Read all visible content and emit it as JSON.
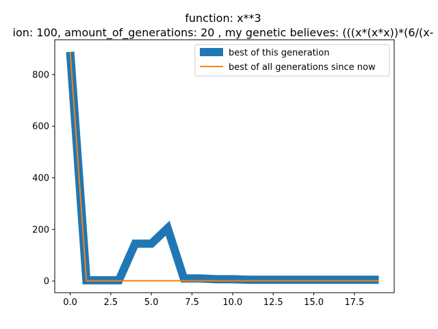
{
  "chart_data": {
    "type": "line",
    "title": "function:  x**3",
    "subtitle": "ion: 100, amount_of_generations: 20 , my genetic believes: (((x*(x*x))*(6/(x-",
    "xlabel": "",
    "ylabel": "",
    "xlim": [
      -0.95,
      19.95
    ],
    "ylim": [
      -45,
      935
    ],
    "xticks": [
      0.0,
      2.5,
      5.0,
      7.5,
      10.0,
      12.5,
      15.0,
      17.5
    ],
    "xtick_labels": [
      "0.0",
      "2.5",
      "5.0",
      "7.5",
      "10.0",
      "12.5",
      "15.0",
      "17.5"
    ],
    "yticks": [
      0,
      200,
      400,
      600,
      800
    ],
    "ytick_labels": [
      "0",
      "200",
      "400",
      "600",
      "800"
    ],
    "grid": false,
    "legend_position": "upper right",
    "series": [
      {
        "name": "best of this generation",
        "color": "#1f77b4",
        "style": "thick",
        "x": [
          0,
          1,
          2,
          3,
          4,
          5,
          6,
          7,
          8,
          9,
          10,
          11,
          12,
          13,
          14,
          15,
          16,
          17,
          18,
          19
        ],
        "y": [
          888,
          3,
          3,
          3,
          145,
          145,
          205,
          10,
          10,
          7,
          7,
          5,
          5,
          5,
          5,
          5,
          5,
          5,
          5,
          5
        ]
      },
      {
        "name": "best of all generations since now",
        "color": "#ff7f0e",
        "style": "thin",
        "x": [
          0,
          1,
          2,
          3,
          4,
          5,
          6,
          7,
          8,
          9,
          10,
          11,
          12,
          13,
          14,
          15,
          16,
          17,
          18,
          19
        ],
        "y": [
          888,
          1,
          1,
          1,
          1,
          1,
          1,
          1,
          1,
          1,
          1,
          1,
          1,
          1,
          1,
          1,
          1,
          1,
          1,
          1
        ]
      }
    ]
  }
}
